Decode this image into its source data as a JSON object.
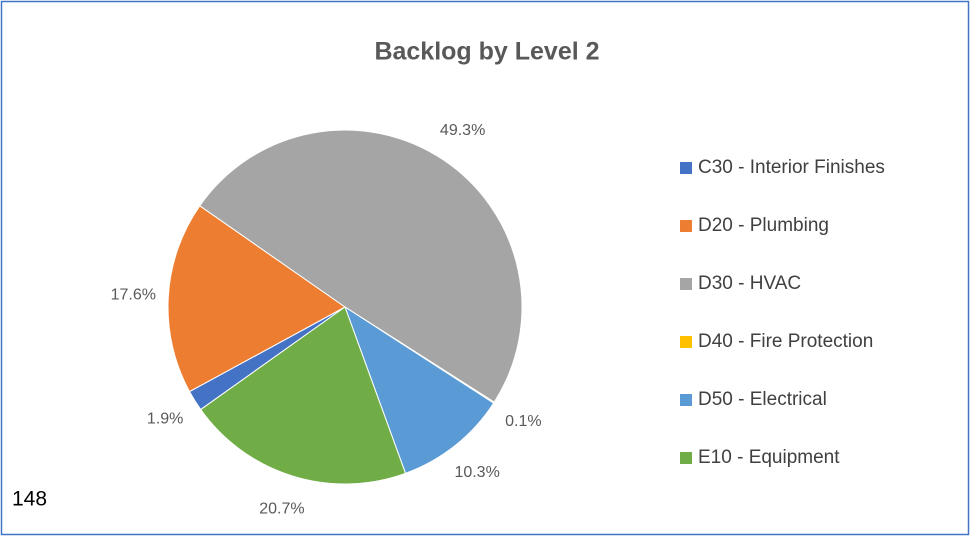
{
  "chart_data": {
    "type": "pie",
    "title": "Backlog by Level 2",
    "categories": [
      "C30 - Interior Finishes",
      "D20 - Plumbing",
      "D30 - HVAC",
      "D40 - Fire Protection",
      "D50 - Electrical",
      "E10 - Equipment"
    ],
    "values": [
      1.9,
      17.6,
      49.3,
      0.1,
      10.3,
      20.7
    ],
    "value_labels": [
      "1.9%",
      "17.6%",
      "49.3%",
      "0.1%",
      "10.3%",
      "20.7%"
    ],
    "colors": [
      "#4472c4",
      "#ed7d31",
      "#a5a5a5",
      "#ffc000",
      "#5b9bd5",
      "#70ad47"
    ],
    "legend": "right"
  },
  "footer_text": "148"
}
